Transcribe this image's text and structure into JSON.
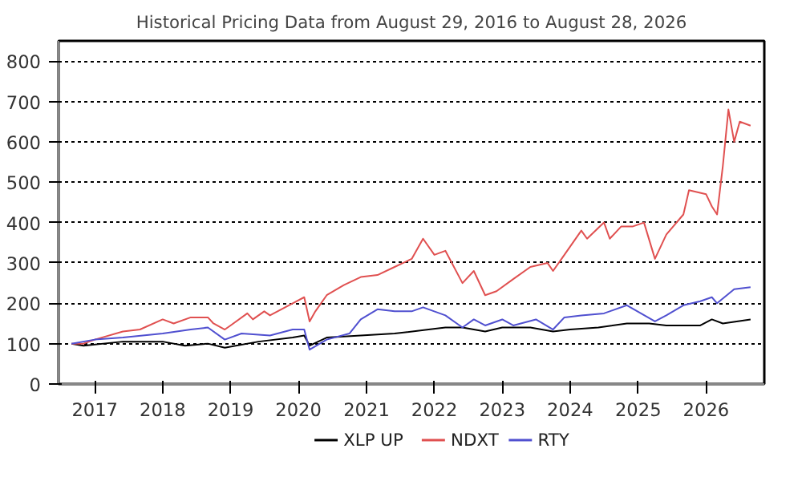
{
  "chart_data": {
    "type": "line",
    "title": "Historical Pricing Data from August 29, 2016 to August 28, 2026",
    "xlim": [
      "2016-06-20",
      "2026-11-10"
    ],
    "xticks": [
      {
        "value": "2017-01-01",
        "label": "2017"
      },
      {
        "value": "2018-01-01",
        "label": "2018"
      },
      {
        "value": "2019-01-01",
        "label": "2019"
      },
      {
        "value": "2020-01-01",
        "label": "2020"
      },
      {
        "value": "2021-01-01",
        "label": "2021"
      },
      {
        "value": "2022-01-01",
        "label": "2022"
      },
      {
        "value": "2023-01-01",
        "label": "2023"
      },
      {
        "value": "2024-01-01",
        "label": "2024"
      },
      {
        "value": "2025-01-01",
        "label": "2025"
      },
      {
        "value": "2026-01-01",
        "label": "2026"
      }
    ],
    "ylim": [
      0,
      850
    ],
    "yticks": [
      0,
      100,
      200,
      300,
      400,
      500,
      600,
      700,
      800
    ],
    "grid": "y",
    "legend": "bottom",
    "series": [
      {
        "name": "XLP UP",
        "color": "#000000",
        "x": [
          "2016-08-29",
          "2016-11",
          "2017-06",
          "2018-01",
          "2018-05",
          "2018-09",
          "2018-12",
          "2019-06",
          "2019-12",
          "2020-02",
          "2020-03",
          "2020-06",
          "2020-12",
          "2021-06",
          "2021-12",
          "2022-03",
          "2022-06",
          "2022-10",
          "2023-01",
          "2023-06",
          "2023-10",
          "2024-01",
          "2024-06",
          "2024-11",
          "2025-03",
          "2025-06",
          "2025-12",
          "2026-02",
          "2026-04",
          "2026-08-28"
        ],
        "values": [
          100,
          95,
          105,
          105,
          95,
          100,
          90,
          105,
          115,
          120,
          95,
          115,
          120,
          125,
          135,
          140,
          140,
          130,
          140,
          140,
          130,
          135,
          140,
          150,
          150,
          145,
          145,
          160,
          150,
          160
        ]
      },
      {
        "name": "NDXT",
        "color": "#e05050",
        "x": [
          "2016-08-29",
          "2016-11",
          "2017-01",
          "2017-06",
          "2017-09",
          "2018-01",
          "2018-03",
          "2018-06",
          "2018-09",
          "2018-10",
          "2018-12",
          "2019-01",
          "2019-04",
          "2019-05",
          "2019-07",
          "2019-08",
          "2019-12",
          "2020-02",
          "2020-03",
          "2020-04",
          "2020-06",
          "2020-09",
          "2020-12",
          "2021-03",
          "2021-06",
          "2021-09",
          "2021-11",
          "2022-01",
          "2022-03",
          "2022-06",
          "2022-08",
          "2022-10",
          "2022-12",
          "2023-03",
          "2023-06",
          "2023-09",
          "2023-10",
          "2023-12",
          "2024-03",
          "2024-04",
          "2024-07",
          "2024-08",
          "2024-10",
          "2024-12",
          "2025-02",
          "2025-04",
          "2025-06",
          "2025-09",
          "2025-10",
          "2026-01",
          "2026-02",
          "2026-03",
          "2026-04",
          "2026-05",
          "2026-06",
          "2026-07",
          "2026-08-28"
        ],
        "values": [
          100,
          100,
          110,
          130,
          135,
          160,
          150,
          165,
          165,
          150,
          135,
          145,
          175,
          160,
          180,
          170,
          200,
          215,
          155,
          180,
          220,
          245,
          265,
          270,
          290,
          310,
          360,
          320,
          330,
          250,
          280,
          220,
          230,
          260,
          290,
          300,
          280,
          320,
          380,
          360,
          400,
          360,
          390,
          390,
          400,
          310,
          370,
          420,
          480,
          470,
          440,
          420,
          540,
          680,
          600,
          650,
          640
        ]
      },
      {
        "name": "RTY",
        "color": "#5050d0",
        "x": [
          "2016-08-29",
          "2017-01",
          "2017-06",
          "2018-01",
          "2018-06",
          "2018-09",
          "2018-12",
          "2019-03",
          "2019-08",
          "2019-12",
          "2020-02",
          "2020-03",
          "2020-06",
          "2020-10",
          "2020-12",
          "2021-03",
          "2021-06",
          "2021-09",
          "2021-11",
          "2022-03",
          "2022-06",
          "2022-08",
          "2022-10",
          "2023-01",
          "2023-03",
          "2023-07",
          "2023-10",
          "2023-12",
          "2024-03",
          "2024-07",
          "2024-11",
          "2025-04",
          "2025-06",
          "2025-09",
          "2025-12",
          "2026-02",
          "2026-03",
          "2026-06",
          "2026-08-28"
        ],
        "values": [
          100,
          110,
          115,
          125,
          135,
          140,
          110,
          125,
          120,
          135,
          135,
          85,
          110,
          125,
          160,
          185,
          180,
          180,
          190,
          170,
          140,
          160,
          145,
          160,
          145,
          160,
          135,
          165,
          170,
          175,
          195,
          155,
          170,
          195,
          205,
          215,
          200,
          235,
          240
        ]
      }
    ]
  }
}
